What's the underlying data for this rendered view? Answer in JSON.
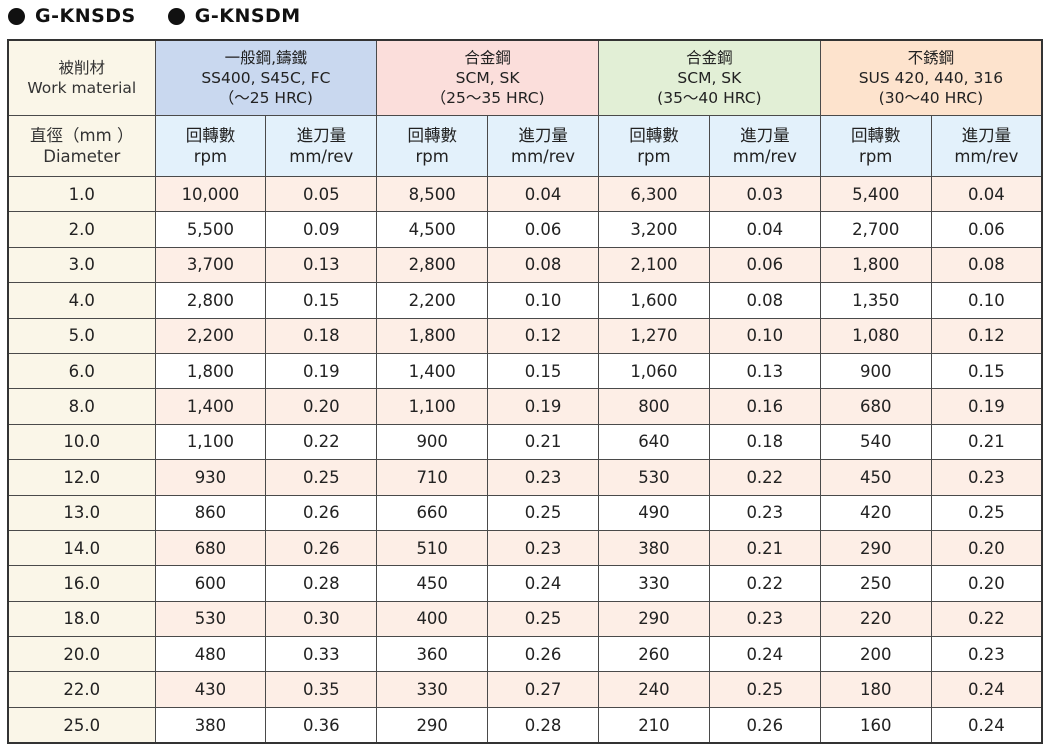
{
  "titles": [
    "G-KNSDS",
    "G-KNSDM"
  ],
  "table": {
    "work_material_label": [
      "被削材",
      "Work material"
    ],
    "diameter_label": [
      "直徑（mm ）",
      "Diameter"
    ],
    "materials": [
      {
        "lines": [
          "一般鋼,鑄鐵",
          "SS400, S45C, FC",
          "（〜25 HRC)"
        ],
        "color": "#c9d8ef"
      },
      {
        "lines": [
          "合金鋼",
          "SCM, SK",
          "（25〜35 HRC)"
        ],
        "color": "#fbdedb"
      },
      {
        "lines": [
          "合金鋼",
          "SCM, SK",
          "(35〜40 HRC)"
        ],
        "color": "#e2efd6"
      },
      {
        "lines": [
          "不銹鋼",
          "SUS 420, 440, 316",
          "(30〜40 HRC)"
        ],
        "color": "#fde3cd"
      }
    ],
    "subheaders": {
      "rpm": [
        "回轉數",
        "rpm"
      ],
      "feed": [
        "進刀量",
        "mm/rev"
      ]
    },
    "rows": [
      {
        "d": "1.0",
        "v": [
          "10,000",
          "0.05",
          "8,500",
          "0.04",
          "6,300",
          "0.03",
          "5,400",
          "0.04"
        ]
      },
      {
        "d": "2.0",
        "v": [
          "5,500",
          "0.09",
          "4,500",
          "0.06",
          "3,200",
          "0.04",
          "2,700",
          "0.06"
        ]
      },
      {
        "d": "3.0",
        "v": [
          "3,700",
          "0.13",
          "2,800",
          "0.08",
          "2,100",
          "0.06",
          "1,800",
          "0.08"
        ]
      },
      {
        "d": "4.0",
        "v": [
          "2,800",
          "0.15",
          "2,200",
          "0.10",
          "1,600",
          "0.08",
          "1,350",
          "0.10"
        ]
      },
      {
        "d": "5.0",
        "v": [
          "2,200",
          "0.18",
          "1,800",
          "0.12",
          "1,270",
          "0.10",
          "1,080",
          "0.12"
        ]
      },
      {
        "d": "6.0",
        "v": [
          "1,800",
          "0.19",
          "1,400",
          "0.15",
          "1,060",
          "0.13",
          "900",
          "0.15"
        ]
      },
      {
        "d": "8.0",
        "v": [
          "1,400",
          "0.20",
          "1,100",
          "0.19",
          "800",
          "0.16",
          "680",
          "0.19"
        ]
      },
      {
        "d": "10.0",
        "v": [
          "1,100",
          "0.22",
          "900",
          "0.21",
          "640",
          "0.18",
          "540",
          "0.21"
        ]
      },
      {
        "d": "12.0",
        "v": [
          "930",
          "0.25",
          "710",
          "0.23",
          "530",
          "0.22",
          "450",
          "0.23"
        ]
      },
      {
        "d": "13.0",
        "v": [
          "860",
          "0.26",
          "660",
          "0.25",
          "490",
          "0.23",
          "420",
          "0.25"
        ]
      },
      {
        "d": "14.0",
        "v": [
          "680",
          "0.26",
          "510",
          "0.23",
          "380",
          "0.21",
          "290",
          "0.20"
        ]
      },
      {
        "d": "16.0",
        "v": [
          "600",
          "0.28",
          "450",
          "0.24",
          "330",
          "0.22",
          "250",
          "0.20"
        ]
      },
      {
        "d": "18.0",
        "v": [
          "530",
          "0.30",
          "400",
          "0.25",
          "290",
          "0.23",
          "220",
          "0.22"
        ]
      },
      {
        "d": "20.0",
        "v": [
          "480",
          "0.33",
          "360",
          "0.26",
          "260",
          "0.24",
          "200",
          "0.23"
        ]
      },
      {
        "d": "22.0",
        "v": [
          "430",
          "0.35",
          "330",
          "0.27",
          "240",
          "0.25",
          "180",
          "0.24"
        ]
      },
      {
        "d": "25.0",
        "v": [
          "380",
          "0.36",
          "290",
          "0.28",
          "210",
          "0.26",
          "160",
          "0.24"
        ]
      }
    ]
  }
}
